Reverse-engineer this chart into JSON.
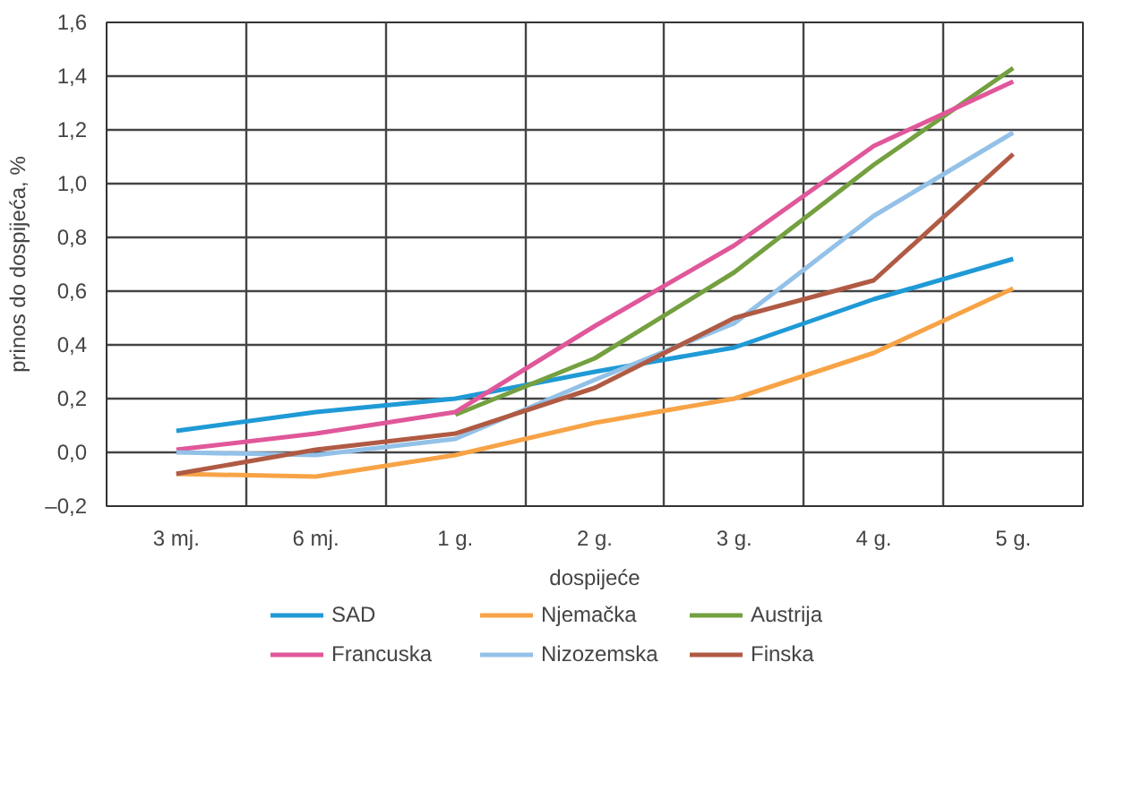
{
  "chart_data": {
    "type": "line",
    "xlabel": "dospijeće",
    "ylabel": "prinos do dospijeća, %",
    "categories": [
      "3 mj.",
      "6 mj.",
      "1 g.",
      "2 g.",
      "3 g.",
      "4 g.",
      "5 g."
    ],
    "series": [
      {
        "name": "SAD",
        "color": "#1f9ad6",
        "values": [
          0.08,
          0.15,
          0.2,
          0.3,
          0.39,
          0.57,
          0.72
        ]
      },
      {
        "name": "Njemačka",
        "color": "#f7a346",
        "values": [
          -0.08,
          -0.09,
          -0.01,
          0.11,
          0.2,
          0.37,
          0.61
        ]
      },
      {
        "name": "Austrija",
        "color": "#74a040",
        "values": [
          null,
          null,
          0.14,
          0.35,
          0.67,
          1.07,
          1.43
        ]
      },
      {
        "name": "Francuska",
        "color": "#e0579a",
        "values": [
          0.01,
          0.07,
          0.15,
          0.47,
          0.77,
          1.14,
          1.38
        ]
      },
      {
        "name": "Nizozemska",
        "color": "#93c1e8",
        "values": [
          0.0,
          -0.01,
          0.05,
          0.27,
          0.48,
          0.88,
          1.19
        ]
      },
      {
        "name": "Finska",
        "color": "#b05a44",
        "values": [
          -0.08,
          0.01,
          0.07,
          0.24,
          0.5,
          0.64,
          1.11
        ]
      }
    ],
    "ylim": [
      -0.2,
      1.6
    ],
    "yticks": [
      {
        "value": -0.2,
        "label": "–0,2"
      },
      {
        "value": 0,
        "label": "0,0"
      },
      {
        "value": 0.2,
        "label": "0,2"
      },
      {
        "value": 0.4,
        "label": "0,4"
      },
      {
        "value": 0.6,
        "label": "0,6"
      },
      {
        "value": 0.8,
        "label": "0,8"
      },
      {
        "value": 1.0,
        "label": "1,0"
      },
      {
        "value": 1.2,
        "label": "1,2"
      },
      {
        "value": 1.4,
        "label": "1,4"
      },
      {
        "value": 1.6,
        "label": "1,6"
      }
    ],
    "grid": true,
    "legend": "bottom",
    "marker": "none",
    "line_style": "solid"
  }
}
